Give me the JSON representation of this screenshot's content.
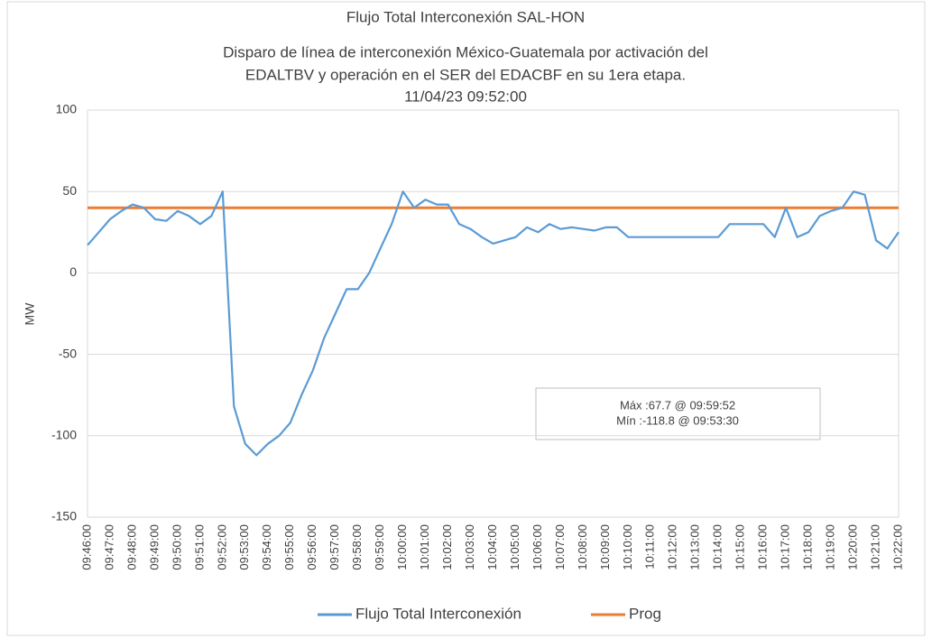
{
  "chart_data": {
    "type": "line",
    "title": "Flujo Total Interconexión SAL-HON",
    "subtitle": [
      "Disparo de línea de interconexión México-Guatemala por activación del",
      "EDALTBV y operación en el SER del EDACBF en su 1era etapa.",
      "11/04/23 09:52:00"
    ],
    "y_label": "MW",
    "annotations": [
      "Máx :67.7 @ 09:59:52",
      "Mín :-118.8 @ 09:53:30"
    ],
    "categories": [
      "09:46:00",
      null,
      "09:47:00",
      null,
      "09:48:00",
      null,
      "09:49:00",
      null,
      "09:50:00",
      null,
      "09:51:00",
      null,
      "09:52:00",
      null,
      "09:53:00",
      null,
      "09:54:00",
      null,
      "09:55:00",
      null,
      "09:56:00",
      null,
      "09:57:00",
      null,
      "09:58:00",
      null,
      "09:59:00",
      null,
      "10:00:00",
      null,
      "10:01:00",
      null,
      "10:02:00",
      null,
      "10:03:00",
      null,
      "10:04:00",
      null,
      "10:05:00",
      null,
      "10:06:00",
      null,
      "10:07:00",
      null,
      "10:08:00",
      null,
      "10:09:00",
      null,
      "10:10:00",
      null,
      "10:11:00",
      null,
      "10:12:00",
      null,
      "10:13:00",
      null,
      "10:14:00",
      null,
      "10:15:00",
      null,
      "10:16:00",
      null,
      "10:17:00",
      null,
      "10:18:00",
      null,
      "10:19:00",
      null,
      "10:20:00",
      null,
      "10:21:00",
      null,
      "10:22:00"
    ],
    "series": [
      {
        "name": "Flujo Total Interconexión",
        "color": "#5b9bd5",
        "values": [
          17,
          25,
          33,
          38,
          42,
          40,
          33,
          32,
          38,
          35,
          30,
          35,
          50,
          -82,
          -105,
          -112,
          -105,
          -100,
          -92,
          -75,
          -60,
          -40,
          -25,
          -10,
          -10,
          0,
          15,
          30,
          50,
          40,
          45,
          42,
          42,
          30,
          27,
          22,
          18,
          20,
          22,
          28,
          25,
          30,
          27,
          28,
          27,
          26,
          28,
          28,
          22,
          22,
          22,
          22,
          22,
          22,
          22,
          22,
          22,
          30,
          30,
          30,
          30,
          22,
          40,
          22,
          25,
          35,
          38,
          40,
          50,
          48,
          20,
          15,
          25
        ]
      },
      {
        "name": "Prog",
        "color": "#ed7d31",
        "values": [
          40,
          40,
          40,
          40,
          40,
          40,
          40,
          40,
          40,
          40,
          40,
          40,
          40,
          40,
          40,
          40,
          40,
          40,
          40,
          40,
          40,
          40,
          40,
          40,
          40,
          40,
          40,
          40,
          40,
          40,
          40,
          40,
          40,
          40,
          40,
          40,
          40,
          40,
          40,
          40,
          40,
          40,
          40,
          40,
          40,
          40,
          40,
          40,
          40,
          40,
          40,
          40,
          40,
          40,
          40,
          40,
          40,
          40,
          40,
          40,
          40,
          40,
          40,
          40,
          40,
          40,
          40,
          40,
          40,
          40,
          40,
          40,
          40
        ]
      }
    ],
    "ylim": [
      -150,
      100
    ],
    "yticks": [
      -150,
      -100,
      -50,
      0,
      50,
      100
    ],
    "grid": true,
    "legend": "bottom"
  }
}
